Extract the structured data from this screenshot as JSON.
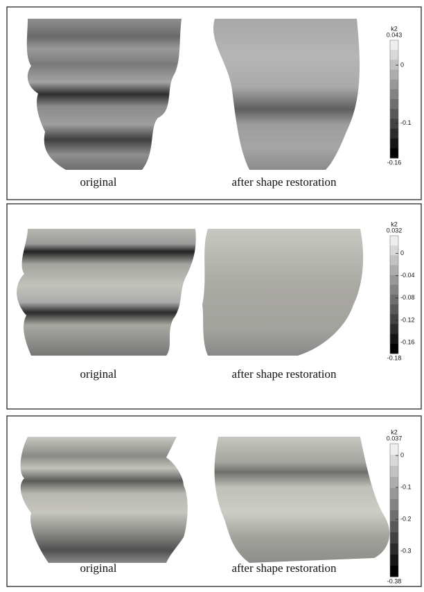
{
  "panels": [
    {
      "captions": [
        "original",
        "after shape restoration"
      ],
      "colorbar": {
        "title": "k2",
        "lim": [
          -0.16,
          0.043
        ],
        "ticks": [
          0,
          -0.1
        ]
      }
    },
    {
      "captions": [
        "original",
        "after shape restoration"
      ],
      "colorbar": {
        "title": "k2",
        "lim": [
          -0.18,
          0.032
        ],
        "ticks": [
          0,
          -0.04,
          -0.08,
          -0.12,
          -0.16
        ]
      }
    },
    {
      "captions": [
        "original",
        "after shape restoration"
      ],
      "colorbar": {
        "title": "k2",
        "lim": [
          -0.38,
          0.037
        ],
        "ticks": [
          0,
          -0.1,
          -0.2,
          -0.3
        ]
      }
    }
  ]
}
